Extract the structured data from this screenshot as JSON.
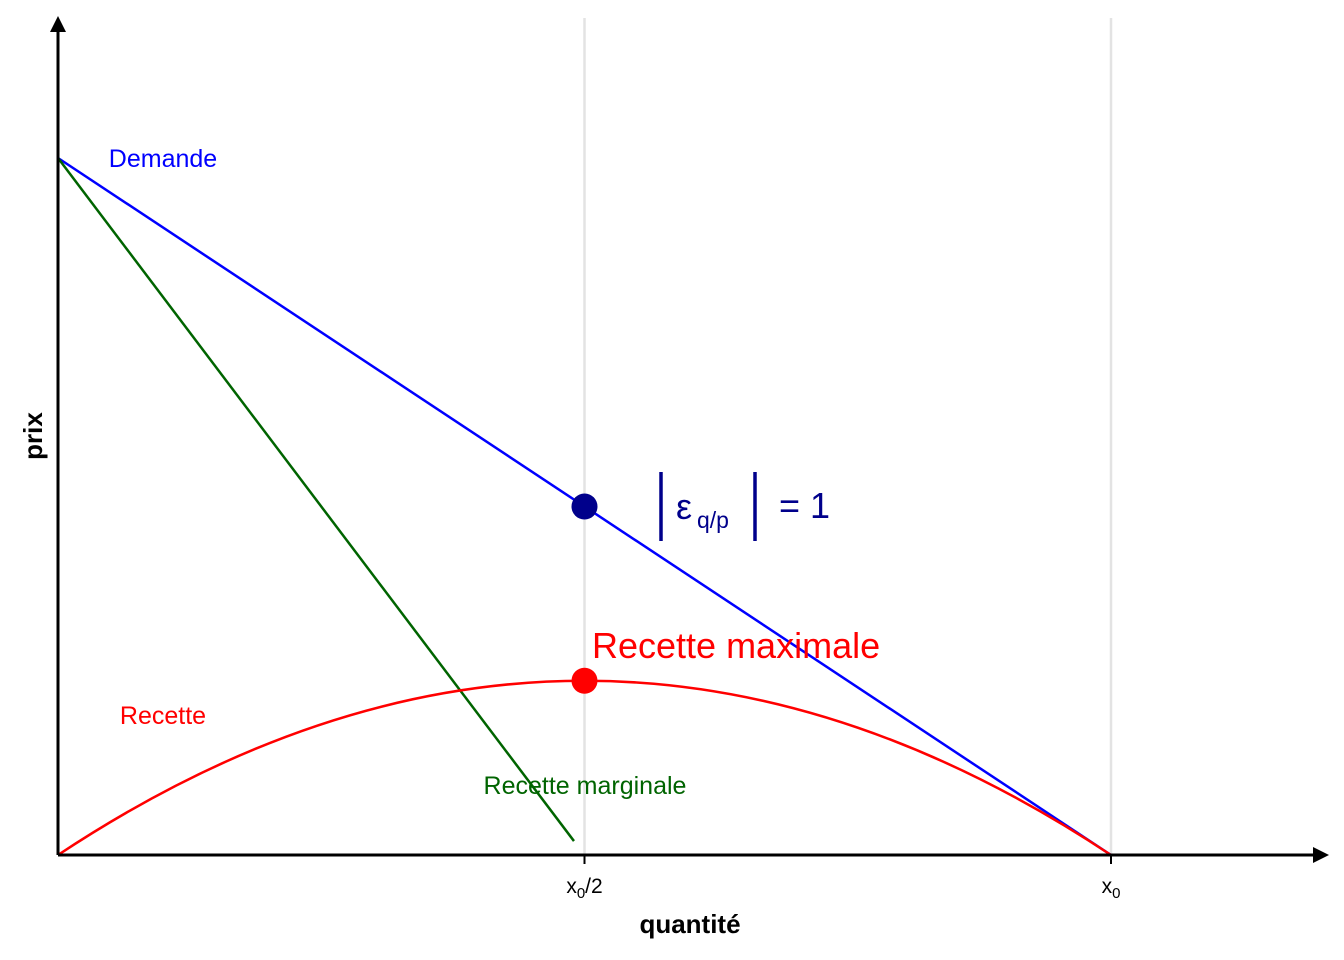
{
  "chart_data": {
    "type": "line",
    "xlabel": "quantité",
    "ylabel": "prix",
    "x_ticks": [
      {
        "value": 0.5,
        "base": "x",
        "sub": "0",
        "suffix": "/2"
      },
      {
        "value": 1.0,
        "base": "x",
        "sub": "0",
        "suffix": ""
      }
    ],
    "xlim": [
      0,
      1.2
    ],
    "ylim": [
      0,
      1.2
    ],
    "grid": "vertical lines at tick positions",
    "series": [
      {
        "name": "Demande",
        "color": "#0000ff",
        "x": [
          0,
          1
        ],
        "y": [
          1,
          0
        ]
      },
      {
        "name": "Recette marginale",
        "color": "#006400",
        "x": [
          0,
          0.49
        ],
        "y": [
          1,
          0.02
        ]
      },
      {
        "name": "Recette",
        "color": "#ff0000",
        "x": [
          0,
          0.5,
          1
        ],
        "y": [
          0,
          0.25,
          0
        ],
        "shape": "parabola"
      }
    ],
    "points": [
      {
        "name": "elasticity-point",
        "x": 0.5,
        "y": 0.5,
        "color": "#00008b"
      },
      {
        "name": "max-revenue-point",
        "x": 0.5,
        "y": 0.25,
        "color": "#ff0000"
      }
    ],
    "annotations": {
      "elasticity": {
        "symbol": "ε",
        "sub": "q/p",
        "rest": "= 1",
        "color": "#00008b"
      },
      "max_revenue": {
        "text": "Recette maximale",
        "color": "#ff0000"
      }
    }
  }
}
